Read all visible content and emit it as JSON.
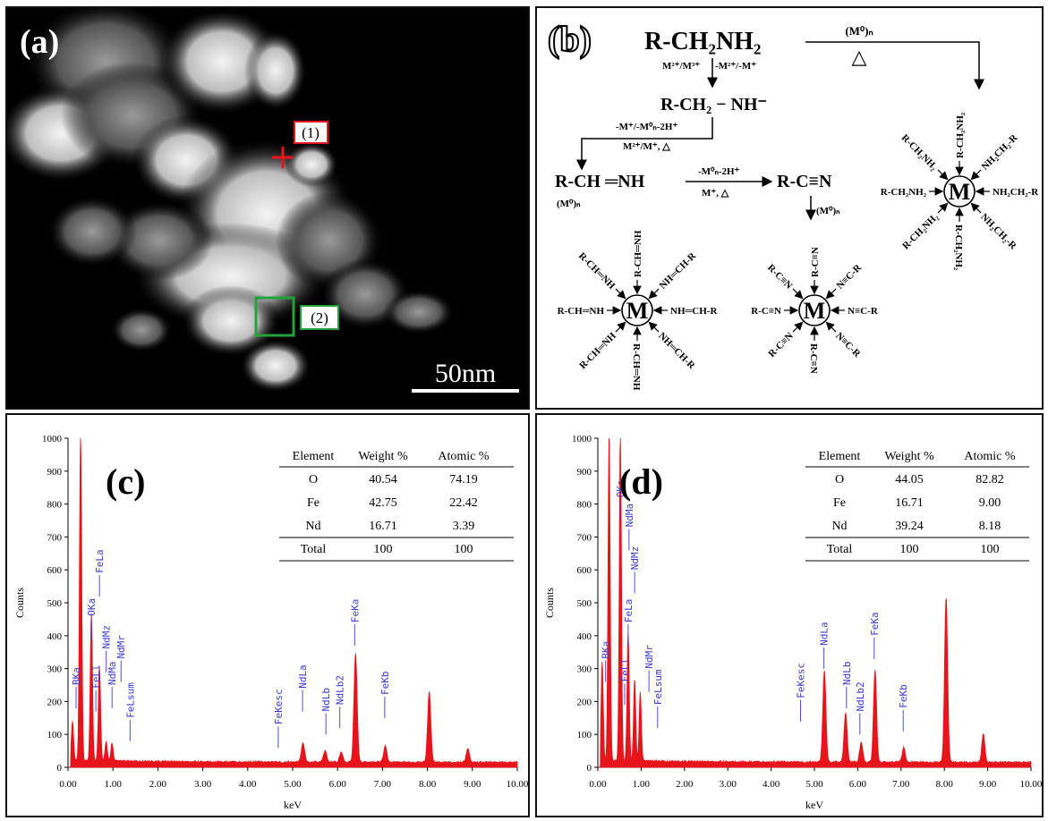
{
  "panel_a": {
    "label": "(a)",
    "marker1": "(1)",
    "marker2": "(2)",
    "scalebar": "50nm"
  },
  "panel_b": {
    "label": "(b)",
    "start": "R-CH₂NH₂",
    "cond1": "M²⁺/M³⁺",
    "cond1b": "-M²⁺/-M⁺",
    "top_cond": "(M⁰)ₙ",
    "heat": "△",
    "imine_anion": "R-CH₂ − NH⁻",
    "cond2": "-M⁺/-M⁰ₙ-2H⁺",
    "cond2b": "M²⁺/M⁺, △",
    "imine": "R-CH ═NH",
    "cond3": "-M⁰ₙ-2H⁺",
    "cond3b": "M⁺, △",
    "nitrile": "R-C≡N",
    "m0n_left": "(M⁰)ₙ",
    "m0n_right": "(M⁰)ₙ",
    "center": "M",
    "amine_ligands": [
      "R-CH₂NH₂",
      "R-CH₂NH₂",
      "NH₂CH₂-R",
      "R-CH₂NH₂",
      "NH₂CH₂-R",
      "R-CH₂NH₂",
      "NH₂CH₂-R",
      "R-CH₂NH₂"
    ],
    "imine_ligands": [
      "R-CH═NH",
      "R-CH═NH",
      "NH═CH-R",
      "R-CH═NH",
      "NH═CH-R",
      "R-CH═NH",
      "NH═CH-R",
      "R-CH═NH"
    ],
    "nitrile_ligands": [
      "R-C≡N",
      "R-C≡N",
      "N≡C-R",
      "R-C≡N",
      "N≡C-R",
      "R-C≡N",
      "N≡C-R",
      "R-C≡N"
    ]
  },
  "chart_data": [
    {
      "type": "line",
      "panel_label": "(c)",
      "xlabel": "keV",
      "ylabel": "Counts",
      "xlim": [
        0,
        10
      ],
      "ylim": [
        0,
        1000
      ],
      "xticks": [
        "0.00",
        "1.00",
        "2.00",
        "3.00",
        "4.00",
        "5.00",
        "6.00",
        "7.00",
        "8.00",
        "9.00",
        "10.00"
      ],
      "yticks": [
        "0",
        "100",
        "200",
        "300",
        "400",
        "500",
        "600",
        "700",
        "800",
        "900",
        "1000"
      ],
      "color": "#e8141b",
      "peaks": [
        {
          "x": 0.1,
          "y": 120
        },
        {
          "x": 0.28,
          "y": 1000
        },
        {
          "x": 0.52,
          "y": 450
        },
        {
          "x": 0.7,
          "y": 290
        },
        {
          "x": 0.85,
          "y": 60
        },
        {
          "x": 0.98,
          "y": 55
        },
        {
          "x": 5.23,
          "y": 60
        },
        {
          "x": 5.72,
          "y": 35
        },
        {
          "x": 6.08,
          "y": 30
        },
        {
          "x": 6.4,
          "y": 330
        },
        {
          "x": 7.06,
          "y": 50
        },
        {
          "x": 8.04,
          "y": 215
        },
        {
          "x": 8.9,
          "y": 40
        }
      ],
      "labels": [
        {
          "text": "BKa",
          "x": 0.18,
          "y": 250
        },
        {
          "text": "OKa",
          "x": 0.52,
          "y": 460
        },
        {
          "text": "FeLa",
          "x": 0.7,
          "y": 590
        },
        {
          "text": "FeLl",
          "x": 0.62,
          "y": 240
        },
        {
          "text": "NdMz",
          "x": 0.85,
          "y": 360
        },
        {
          "text": "NdMa",
          "x": 0.98,
          "y": 250
        },
        {
          "text": "NdMr",
          "x": 1.18,
          "y": 330
        },
        {
          "text": "FeLsum",
          "x": 1.38,
          "y": 150
        },
        {
          "text": "FeKesc",
          "x": 4.68,
          "y": 130
        },
        {
          "text": "NdLa",
          "x": 5.22,
          "y": 240
        },
        {
          "text": "NdLb",
          "x": 5.74,
          "y": 170
        },
        {
          "text": "NdLb2",
          "x": 6.05,
          "y": 190
        },
        {
          "text": "FeKa",
          "x": 6.38,
          "y": 440
        },
        {
          "text": "FeKb",
          "x": 7.05,
          "y": 220
        }
      ],
      "table": {
        "headers": [
          "Element",
          "Weight %",
          "Atomic %"
        ],
        "rows": [
          [
            "O",
            "40.54",
            "74.19"
          ],
          [
            "Fe",
            "42.75",
            "22.42"
          ],
          [
            "Nd",
            "16.71",
            "3.39"
          ],
          [
            "Total",
            "100",
            "100"
          ]
        ]
      }
    },
    {
      "type": "line",
      "panel_label": "(d)",
      "xlabel": "keV",
      "ylabel": "Counts",
      "xlim": [
        0,
        10
      ],
      "ylim": [
        0,
        1000
      ],
      "xticks": [
        "0.00",
        "1.00",
        "2.00",
        "3.00",
        "4.00",
        "5.00",
        "6.00",
        "7.00",
        "8.00",
        "9.00",
        "10.00"
      ],
      "yticks": [
        "0",
        "100",
        "200",
        "300",
        "400",
        "500",
        "600",
        "700",
        "800",
        "900",
        "1000"
      ],
      "color": "#e8141b",
      "peaks": [
        {
          "x": 0.1,
          "y": 300
        },
        {
          "x": 0.26,
          "y": 1000
        },
        {
          "x": 0.52,
          "y": 1000
        },
        {
          "x": 0.7,
          "y": 390
        },
        {
          "x": 0.85,
          "y": 250
        },
        {
          "x": 0.98,
          "y": 210
        },
        {
          "x": 5.23,
          "y": 280
        },
        {
          "x": 5.72,
          "y": 150
        },
        {
          "x": 6.08,
          "y": 60
        },
        {
          "x": 6.4,
          "y": 280
        },
        {
          "x": 7.06,
          "y": 45
        },
        {
          "x": 8.04,
          "y": 500
        },
        {
          "x": 8.9,
          "y": 85
        }
      ],
      "labels": [
        {
          "text": "BKa",
          "x": 0.18,
          "y": 330
        },
        {
          "text": "OKa",
          "x": 0.52,
          "y": 820
        },
        {
          "text": "NdMa",
          "x": 0.72,
          "y": 730
        },
        {
          "text": "FeLl",
          "x": 0.62,
          "y": 260
        },
        {
          "text": "FeLa",
          "x": 0.7,
          "y": 440
        },
        {
          "text": "NdMz",
          "x": 0.85,
          "y": 600
        },
        {
          "text": "NdMr",
          "x": 1.18,
          "y": 300
        },
        {
          "text": "FeLsum",
          "x": 1.38,
          "y": 190
        },
        {
          "text": "FeKesc",
          "x": 4.68,
          "y": 210
        },
        {
          "text": "NdLa",
          "x": 5.22,
          "y": 370
        },
        {
          "text": "NdLb",
          "x": 5.74,
          "y": 250
        },
        {
          "text": "NdLb2",
          "x": 6.05,
          "y": 170
        },
        {
          "text": "FeKa",
          "x": 6.38,
          "y": 400
        },
        {
          "text": "FeKb",
          "x": 7.05,
          "y": 180
        }
      ],
      "table": {
        "headers": [
          "Element",
          "Weight %",
          "Atomic %"
        ],
        "rows": [
          [
            "O",
            "44.05",
            "82.82"
          ],
          [
            "Fe",
            "16.71",
            "9.00"
          ],
          [
            "Nd",
            "39.24",
            "8.18"
          ],
          [
            "Total",
            "100",
            "100"
          ]
        ]
      }
    }
  ]
}
